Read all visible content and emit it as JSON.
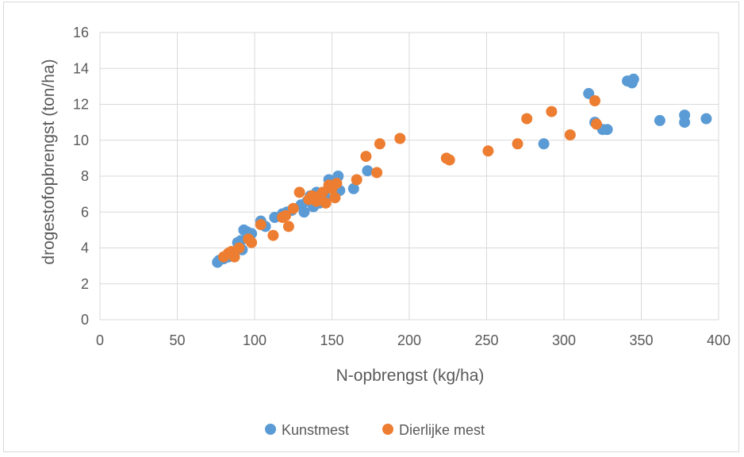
{
  "chart_data": {
    "type": "scatter",
    "title": "",
    "xlabel": "N-opbrengst (kg/ha)",
    "ylabel": "drogestofopbrengst (ton/ha)",
    "xlim": [
      0,
      400
    ],
    "ylim": [
      0,
      16
    ],
    "xticks": [
      0,
      50,
      100,
      150,
      200,
      250,
      300,
      350,
      400
    ],
    "yticks": [
      0,
      2,
      4,
      6,
      8,
      10,
      12,
      14,
      16
    ],
    "grid": true,
    "legend_position": "bottom",
    "series": [
      {
        "name": "Kunstmest",
        "color": "#5b9bd5",
        "points": [
          [
            76,
            3.2
          ],
          [
            77,
            3.3
          ],
          [
            80,
            3.4
          ],
          [
            83,
            3.5
          ],
          [
            86,
            3.6
          ],
          [
            89,
            4.3
          ],
          [
            91,
            4.4
          ],
          [
            92,
            3.9
          ],
          [
            93,
            5.0
          ],
          [
            95,
            4.9
          ],
          [
            98,
            4.8
          ],
          [
            104,
            5.5
          ],
          [
            107,
            5.2
          ],
          [
            113,
            5.7
          ],
          [
            118,
            5.9
          ],
          [
            121,
            6.0
          ],
          [
            124,
            6.1
          ],
          [
            130,
            6.4
          ],
          [
            132,
            6.0
          ],
          [
            134,
            6.6
          ],
          [
            136,
            6.9
          ],
          [
            137,
            6.6
          ],
          [
            138,
            6.3
          ],
          [
            140,
            7.1
          ],
          [
            142,
            6.5
          ],
          [
            144,
            7.0
          ],
          [
            146,
            6.8
          ],
          [
            148,
            7.8
          ],
          [
            150,
            7.6
          ],
          [
            152,
            7.7
          ],
          [
            154,
            8.0
          ],
          [
            155,
            7.2
          ],
          [
            164,
            7.3
          ],
          [
            173,
            8.3
          ],
          [
            287,
            9.8
          ],
          [
            316,
            12.6
          ],
          [
            320,
            11.0
          ],
          [
            325,
            10.6
          ],
          [
            328,
            10.6
          ],
          [
            341,
            13.3
          ],
          [
            344,
            13.2
          ],
          [
            345,
            13.4
          ],
          [
            362,
            11.1
          ],
          [
            378,
            11.0
          ],
          [
            378,
            11.4
          ],
          [
            392,
            11.2
          ]
        ]
      },
      {
        "name": "Dierlijke mest",
        "color": "#ed7d31",
        "points": [
          [
            80,
            3.5
          ],
          [
            83,
            3.7
          ],
          [
            85,
            3.8
          ],
          [
            87,
            3.5
          ],
          [
            90,
            4.0
          ],
          [
            96,
            4.5
          ],
          [
            98,
            4.3
          ],
          [
            104,
            5.3
          ],
          [
            112,
            4.7
          ],
          [
            118,
            5.7
          ],
          [
            120,
            5.8
          ],
          [
            122,
            5.2
          ],
          [
            125,
            6.2
          ],
          [
            129,
            7.1
          ],
          [
            135,
            6.7
          ],
          [
            137,
            6.9
          ],
          [
            140,
            6.6
          ],
          [
            142,
            6.9
          ],
          [
            144,
            7.1
          ],
          [
            146,
            6.5
          ],
          [
            148,
            7.5
          ],
          [
            150,
            7.3
          ],
          [
            152,
            6.8
          ],
          [
            153,
            7.6
          ],
          [
            166,
            7.8
          ],
          [
            172,
            9.1
          ],
          [
            179,
            8.2
          ],
          [
            181,
            9.8
          ],
          [
            194,
            10.1
          ],
          [
            224,
            9.0
          ],
          [
            226,
            8.9
          ],
          [
            251,
            9.4
          ],
          [
            270,
            9.8
          ],
          [
            276,
            11.2
          ],
          [
            292,
            11.6
          ],
          [
            304,
            10.3
          ],
          [
            320,
            12.2
          ],
          [
            321,
            10.9
          ]
        ]
      }
    ]
  }
}
